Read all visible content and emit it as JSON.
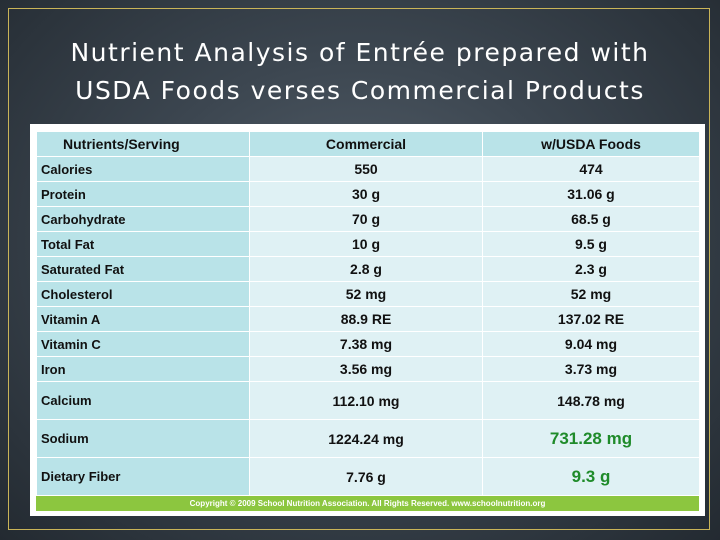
{
  "title_line1": "Nutrient Analysis of Entrée prepared with",
  "title_line2": "USDA Foods verses Commercial Products",
  "table": {
    "headers": [
      "Nutrients/Serving",
      "Commercial",
      "w/USDA Foods"
    ],
    "rows": [
      {
        "nutrient": "Calories",
        "commercial": "550",
        "usda": "474"
      },
      {
        "nutrient": "Protein",
        "commercial": "30 g",
        "usda": "31.06 g"
      },
      {
        "nutrient": "Carbohydrate",
        "commercial": "70 g",
        "usda": "68.5 g"
      },
      {
        "nutrient": "Total Fat",
        "commercial": "10 g",
        "usda": "9.5 g"
      },
      {
        "nutrient": "Saturated Fat",
        "commercial": "2.8 g",
        "usda": "2.3 g"
      },
      {
        "nutrient": "Cholesterol",
        "commercial": "52 mg",
        "usda": "52 mg"
      },
      {
        "nutrient": "Vitamin A",
        "commercial": "88.9 RE",
        "usda": "137.02 RE"
      },
      {
        "nutrient": "Vitamin C",
        "commercial": "7.38 mg",
        "usda": "9.04 mg"
      },
      {
        "nutrient": "Iron",
        "commercial": "3.56 mg",
        "usda": "3.73 mg"
      },
      {
        "nutrient": "Calcium",
        "commercial": "112.10 mg",
        "usda": "148.78 mg"
      },
      {
        "nutrient": "Sodium",
        "commercial": "1224.24 mg",
        "usda": "731.28 mg"
      },
      {
        "nutrient": "Dietary Fiber",
        "commercial": "7.76 g",
        "usda": "9.3 g"
      }
    ]
  },
  "footer": "Copyright © 2009 School Nutrition Association.  All Rights Reserved.  www.schoolnutrition.org",
  "colors": {
    "header_cell": "#b9e3e8",
    "value_cell": "#dff1f4",
    "highlight_text": "#1f8b2a",
    "footer_bar": "#8cc63f",
    "frame_border": "#c9b458"
  }
}
